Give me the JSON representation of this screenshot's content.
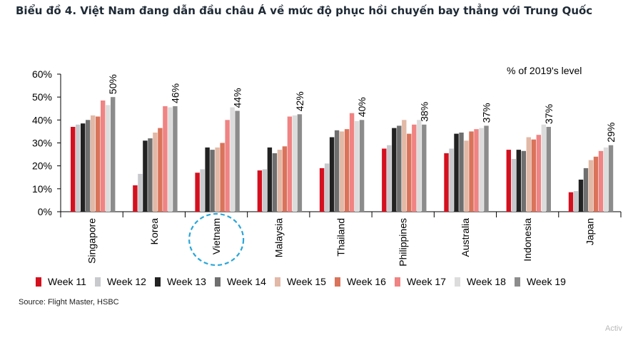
{
  "title": "Biểu đồ 4. Việt Nam đang dẫn đầu châu Á về mức độ phục hồi chuyến bay thẳng với Trung Quốc",
  "source": "Source: Flight Master, HSBC",
  "corner_text": "Activ",
  "chart_data": {
    "type": "bar",
    "unit_note": "% of 2019's level",
    "ylim": [
      0,
      60
    ],
    "yticks": [
      "0%",
      "10%",
      "20%",
      "30%",
      "40%",
      "50%",
      "60%"
    ],
    "highlighted_category": "Vietnam",
    "categories": [
      "Singapore",
      "Korea",
      "Vietnam",
      "Malaysia",
      "Thailand",
      "Philippines",
      "Australia",
      "Indonesia",
      "Japan"
    ],
    "annotations": [
      "50%",
      "46%",
      "44%",
      "42%",
      "40%",
      "38%",
      "37%",
      "37%",
      "29%"
    ],
    "series": [
      {
        "name": "Week 11",
        "color": "#d4101f",
        "values": [
          37,
          11.5,
          17,
          18,
          19,
          27.5,
          25.5,
          27,
          8.5
        ]
      },
      {
        "name": "Week 12",
        "color": "#c7c9cc",
        "values": [
          38,
          16.5,
          18.5,
          18.5,
          21,
          29,
          27.5,
          23,
          9
        ]
      },
      {
        "name": "Week 13",
        "color": "#222222",
        "values": [
          38.5,
          31,
          28,
          28,
          32.5,
          36.5,
          34,
          27,
          14
        ]
      },
      {
        "name": "Week 14",
        "color": "#6f6f6f",
        "values": [
          40,
          32,
          27,
          25.5,
          35.5,
          37.5,
          34.5,
          26.5,
          19
        ]
      },
      {
        "name": "Week 15",
        "color": "#e2b8a6",
        "values": [
          42,
          34.5,
          28,
          27,
          35,
          40,
          31,
          32.5,
          22.5
        ]
      },
      {
        "name": "Week 16",
        "color": "#d9735a",
        "values": [
          41.5,
          36.5,
          30,
          28.5,
          36,
          34,
          35,
          31.5,
          24
        ]
      },
      {
        "name": "Week 17",
        "color": "#f08383",
        "values": [
          48.5,
          46,
          40,
          41.5,
          43,
          38,
          36,
          33.5,
          26.5
        ]
      },
      {
        "name": "Week 18",
        "color": "#dcdcdc",
        "values": [
          46.5,
          45.5,
          45.5,
          42,
          39.5,
          40,
          36.5,
          38,
          28
        ]
      },
      {
        "name": "Week 19",
        "color": "#8c8c8c",
        "values": [
          50,
          46,
          44,
          42.5,
          40,
          38,
          37.5,
          37,
          29
        ]
      }
    ]
  }
}
